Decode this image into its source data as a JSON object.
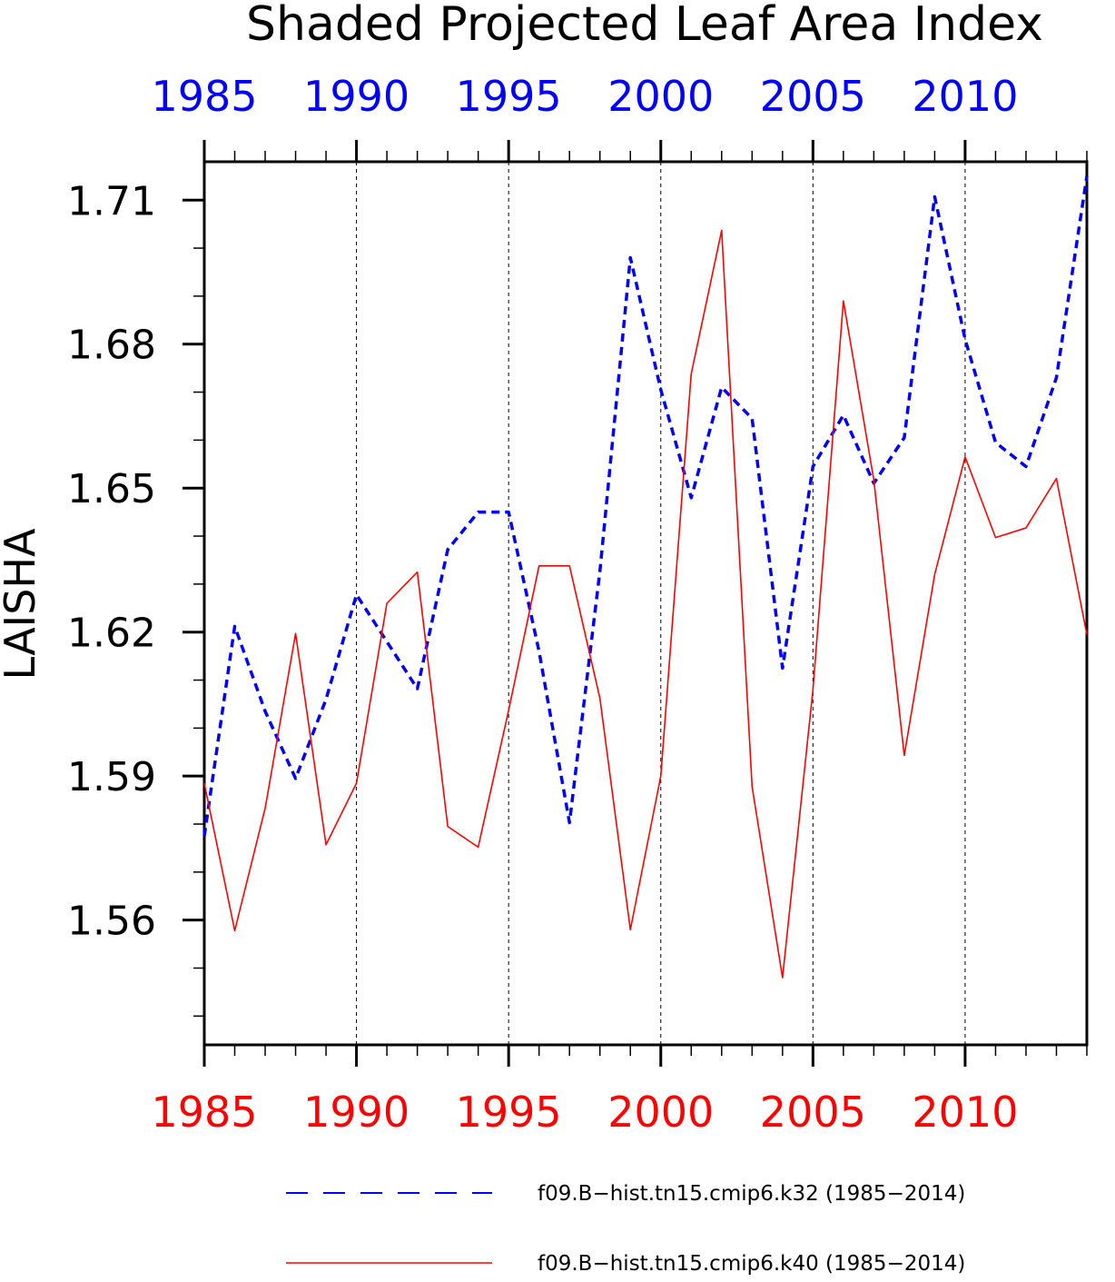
{
  "chart_data": {
    "type": "line",
    "title": "Shaded Projected Leaf Area Index",
    "ylabel": "LAISHA",
    "xlabel": "",
    "xlim": [
      1985,
      2014
    ],
    "ylim": [
      1.534,
      1.718
    ],
    "x_ticks": [
      1985,
      1990,
      1995,
      2000,
      2005,
      2010
    ],
    "x_tick_labels": [
      "1985",
      "1990",
      "1995",
      "2000",
      "2005",
      "2010"
    ],
    "y_ticks": [
      1.56,
      1.59,
      1.62,
      1.65,
      1.68,
      1.71
    ],
    "y_tick_labels": [
      "1.56",
      "1.59",
      "1.62",
      "1.65",
      "1.68",
      "1.71"
    ],
    "grid": "vertical dashed at major x ticks",
    "legend_position": "bottom",
    "x": [
      1985,
      1986,
      1987,
      1988,
      1989,
      1990,
      1991,
      1992,
      1993,
      1994,
      1995,
      1996,
      1997,
      1998,
      1999,
      2000,
      2001,
      2002,
      2003,
      2004,
      2005,
      2006,
      2007,
      2008,
      2009,
      2010,
      2011,
      2012,
      2013,
      2014
    ],
    "series": [
      {
        "name": "f09.B−hist.tn15.cmip6.k32 (1985−2014)",
        "color": "#0000ff",
        "style": "dashed",
        "values": [
          1.5775,
          1.6212,
          1.6035,
          1.5895,
          1.606,
          1.6278,
          1.618,
          1.6082,
          1.6372,
          1.645,
          1.645,
          1.616,
          1.5803,
          1.6327,
          1.698,
          1.6705,
          1.648,
          1.671,
          1.6645,
          1.6125,
          1.6545,
          1.6652,
          1.651,
          1.6605,
          1.7107,
          1.681,
          1.6595,
          1.6545,
          1.673,
          1.715
        ]
      },
      {
        "name": "f09.B−hist.tn15.cmip6.k40 (1985−2014)",
        "color": "#ff0000",
        "style": "solid",
        "values": [
          1.5885,
          1.5578,
          1.5833,
          1.6197,
          1.5757,
          1.5885,
          1.626,
          1.6325,
          1.5795,
          1.5752,
          1.6037,
          1.6338,
          1.6338,
          1.6062,
          1.558,
          1.59,
          1.6738,
          1.7037,
          1.5878,
          1.548,
          1.608,
          1.689,
          1.6517,
          1.5943,
          1.632,
          1.6565,
          1.6397,
          1.6417,
          1.652,
          1.6195
        ]
      }
    ]
  }
}
